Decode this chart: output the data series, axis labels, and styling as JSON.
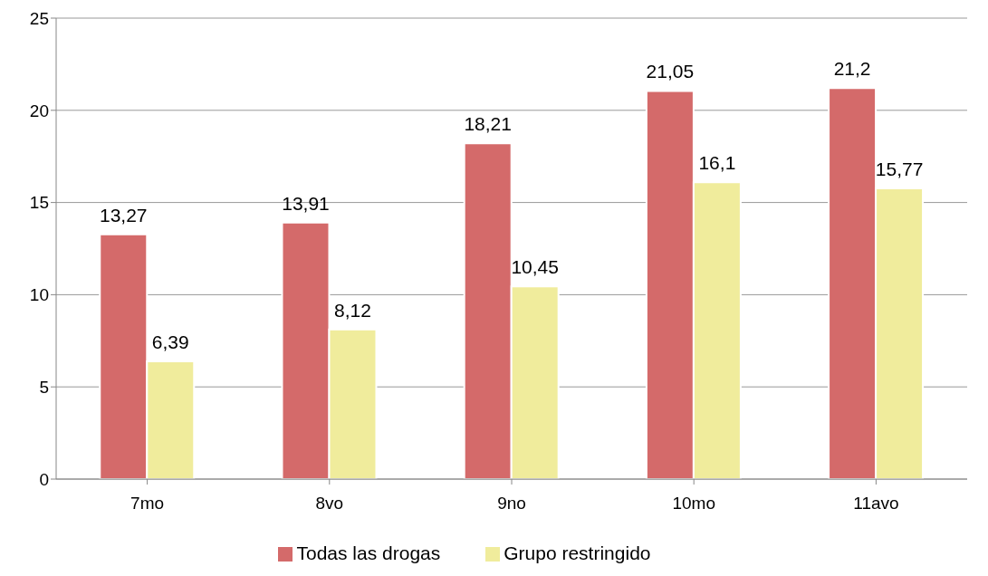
{
  "chart_data": {
    "type": "bar",
    "categories": [
      "7mo",
      "8vo",
      "9no",
      "10mo",
      "11avo"
    ],
    "series": [
      {
        "name": "Todas las drogas",
        "color": "#d46a6a",
        "values": [
          13.27,
          13.91,
          18.21,
          21.05,
          21.2
        ],
        "value_labels": [
          "13,27",
          "13,91",
          "18,21",
          "21,05",
          "21,2"
        ]
      },
      {
        "name": "Grupo restringido",
        "color": "#f0ec9c",
        "values": [
          6.39,
          8.12,
          10.45,
          16.1,
          15.77
        ],
        "value_labels": [
          "6,39",
          "8,12",
          "10,45",
          "16,1",
          "15,77"
        ]
      }
    ],
    "ylim": [
      0,
      25
    ],
    "yticks": [
      0,
      5,
      10,
      15,
      20,
      25
    ],
    "grid": "y",
    "legend": "bottom"
  }
}
